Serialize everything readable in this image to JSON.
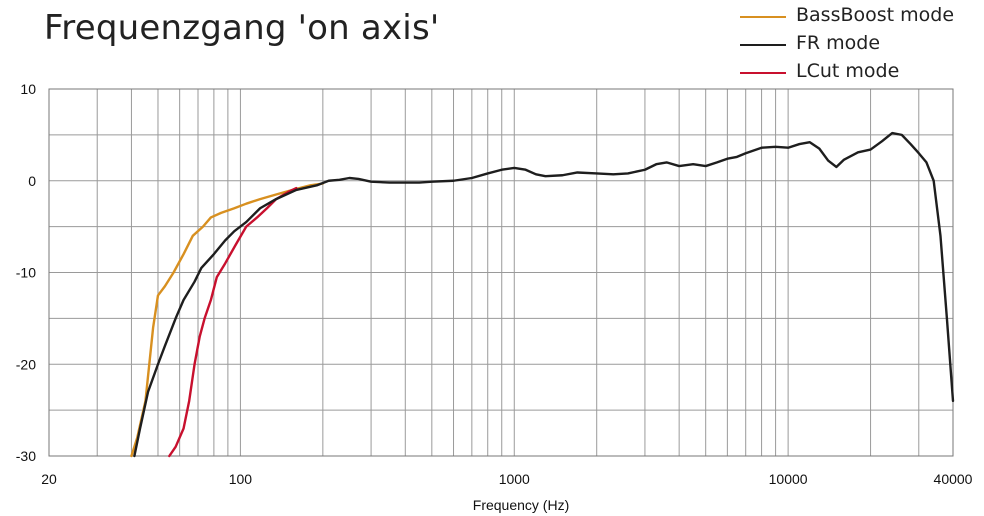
{
  "chart_data": {
    "type": "line",
    "title": "Frequenzgang 'on axis'",
    "xlabel": "Frequency (Hz)",
    "ylabel": "",
    "x_scale": "log",
    "xlim": [
      20,
      40000
    ],
    "ylim": [
      -30,
      10
    ],
    "grid": true,
    "legend_position": "top-right",
    "x_tick_labels": [
      {
        "value": 20,
        "label": "20"
      },
      {
        "value": 100,
        "label": "100"
      },
      {
        "value": 1000,
        "label": "1000"
      },
      {
        "value": 10000,
        "label": "10000"
      },
      {
        "value": 40000,
        "label": "40000"
      }
    ],
    "y_tick_labels": [
      {
        "value": 10,
        "label": "10"
      },
      {
        "value": 0,
        "label": "0"
      },
      {
        "value": -10,
        "label": "-10"
      },
      {
        "value": -20,
        "label": "-20"
      },
      {
        "value": -30,
        "label": "-30"
      }
    ],
    "series": [
      {
        "name": "BassBoost mode",
        "color": "#d89020",
        "points": [
          [
            40,
            -30
          ],
          [
            42,
            -28
          ],
          [
            45,
            -24
          ],
          [
            48,
            -16
          ],
          [
            50,
            -12.5
          ],
          [
            53,
            -11.5
          ],
          [
            57,
            -10
          ],
          [
            62,
            -8
          ],
          [
            67,
            -6
          ],
          [
            73,
            -5
          ],
          [
            78,
            -4
          ],
          [
            85,
            -3.5
          ],
          [
            95,
            -3
          ],
          [
            105,
            -2.5
          ],
          [
            118,
            -2
          ],
          [
            135,
            -1.5
          ],
          [
            155,
            -1
          ],
          [
            180,
            -0.5
          ],
          [
            200,
            -0.3
          ]
        ]
      },
      {
        "name": "FR mode",
        "color": "#1e1e1e",
        "points": [
          [
            41,
            -30
          ],
          [
            43,
            -27
          ],
          [
            46,
            -23
          ],
          [
            50,
            -20
          ],
          [
            53,
            -18
          ],
          [
            58,
            -15
          ],
          [
            62,
            -13
          ],
          [
            68,
            -11
          ],
          [
            72,
            -9.5
          ],
          [
            80,
            -8
          ],
          [
            88,
            -6.5
          ],
          [
            95,
            -5.5
          ],
          [
            105,
            -4.5
          ],
          [
            118,
            -3
          ],
          [
            135,
            -2
          ],
          [
            160,
            -1
          ],
          [
            190,
            -0.5
          ],
          [
            210,
            0
          ],
          [
            230,
            0.1
          ],
          [
            250,
            0.3
          ],
          [
            270,
            0.2
          ],
          [
            300,
            -0.1
          ],
          [
            350,
            -0.2
          ],
          [
            400,
            -0.2
          ],
          [
            450,
            -0.2
          ],
          [
            500,
            -0.1
          ],
          [
            600,
            0
          ],
          [
            700,
            0.3
          ],
          [
            800,
            0.8
          ],
          [
            900,
            1.2
          ],
          [
            1000,
            1.4
          ],
          [
            1100,
            1.2
          ],
          [
            1200,
            0.7
          ],
          [
            1300,
            0.5
          ],
          [
            1500,
            0.6
          ],
          [
            1700,
            0.9
          ],
          [
            2000,
            0.8
          ],
          [
            2300,
            0.7
          ],
          [
            2600,
            0.8
          ],
          [
            3000,
            1.2
          ],
          [
            3300,
            1.8
          ],
          [
            3600,
            2.0
          ],
          [
            4000,
            1.6
          ],
          [
            4500,
            1.8
          ],
          [
            5000,
            1.6
          ],
          [
            5500,
            2.0
          ],
          [
            6000,
            2.4
          ],
          [
            6500,
            2.6
          ],
          [
            7000,
            3.0
          ],
          [
            8000,
            3.6
          ],
          [
            9000,
            3.7
          ],
          [
            10000,
            3.6
          ],
          [
            11000,
            4.0
          ],
          [
            12000,
            4.2
          ],
          [
            13000,
            3.5
          ],
          [
            14000,
            2.2
          ],
          [
            15000,
            1.5
          ],
          [
            16000,
            2.3
          ],
          [
            18000,
            3.1
          ],
          [
            20000,
            3.4
          ],
          [
            22000,
            4.3
          ],
          [
            24000,
            5.2
          ],
          [
            26000,
            5.0
          ],
          [
            28000,
            4.0
          ],
          [
            30000,
            3.0
          ],
          [
            32000,
            2.0
          ],
          [
            34000,
            0
          ],
          [
            36000,
            -6
          ],
          [
            38000,
            -15
          ],
          [
            40000,
            -24
          ]
        ]
      },
      {
        "name": "LCut mode",
        "color": "#c8102e",
        "points": [
          [
            55,
            -30
          ],
          [
            58,
            -29
          ],
          [
            62,
            -27
          ],
          [
            65,
            -24
          ],
          [
            68,
            -20
          ],
          [
            71,
            -17
          ],
          [
            74,
            -15
          ],
          [
            78,
            -13
          ],
          [
            82,
            -10.5
          ],
          [
            88,
            -9
          ],
          [
            96,
            -7
          ],
          [
            105,
            -5
          ],
          [
            115,
            -4
          ],
          [
            125,
            -3
          ],
          [
            135,
            -2
          ],
          [
            150,
            -1.2
          ],
          [
            160,
            -0.8
          ]
        ]
      }
    ]
  }
}
